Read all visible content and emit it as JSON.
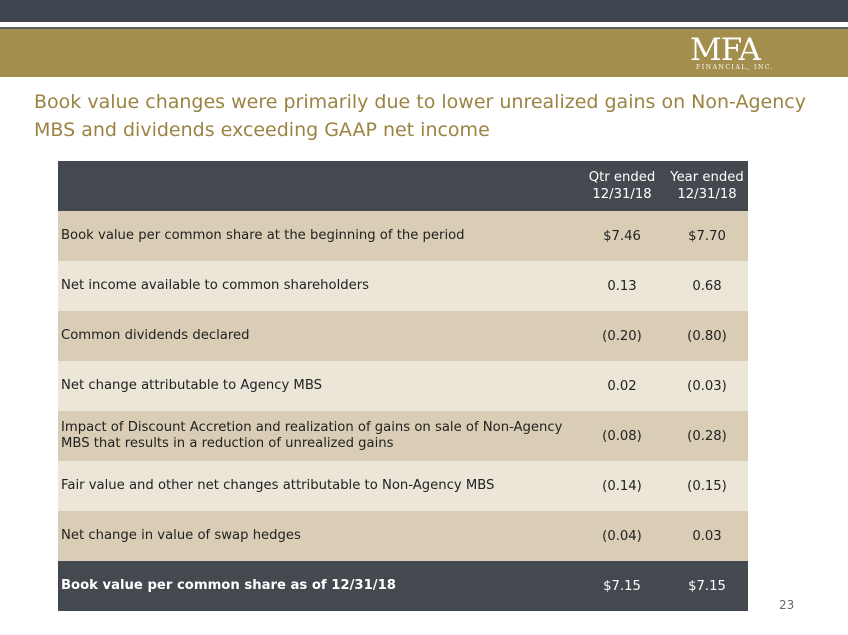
{
  "logo": {
    "main": "MFA",
    "sub": "FINANCIAL, INC."
  },
  "headline": "Book value changes were primarily due to lower unrealized gains on Non-Agency MBS and dividends exceeding GAAP net income",
  "table": {
    "columns": [
      {
        "line1": "Qtr ended",
        "line2": "12/31/18"
      },
      {
        "line1": "Year ended",
        "line2": "12/31/18"
      }
    ],
    "rows": [
      {
        "label": "Book value per common share at the beginning of the period",
        "qtr": "$7.46",
        "year": "$7.70"
      },
      {
        "label": "Net income available to common shareholders",
        "qtr": "0.13",
        "year": "0.68"
      },
      {
        "label": "Common dividends declared",
        "qtr": "(0.20)",
        "year": "(0.80)"
      },
      {
        "label": "Net change attributable to Agency MBS",
        "qtr": "0.02",
        "year": "(0.03)"
      },
      {
        "label": "Impact of Discount Accretion and realization of gains on sale of Non-Agency MBS that results in a reduction of unrealized gains",
        "qtr": "(0.08)",
        "year": "(0.28)"
      },
      {
        "label": "Fair value and other net changes attributable to Non-Agency MBS",
        "qtr": "(0.14)",
        "year": "(0.15)"
      },
      {
        "label": "Net change in value of swap hedges",
        "qtr": "(0.04)",
        "year": "0.03"
      }
    ],
    "footer": {
      "label": "Book value per common share as of 12/31/18",
      "qtr": "$7.15",
      "year": "$7.15"
    }
  },
  "page_number": "23"
}
